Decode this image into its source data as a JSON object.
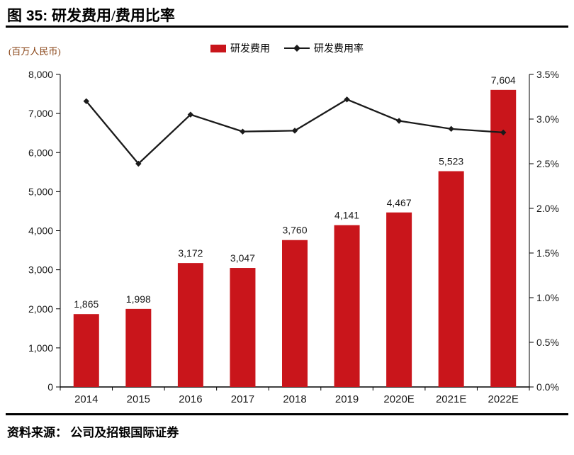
{
  "page": {
    "title_prefix": "图 35:",
    "title_main": "研发费用/费用比率",
    "unit_label": "(百万人民币)",
    "source_label": "资料来源：",
    "source_text": "公司及招银国际证券"
  },
  "colors": {
    "bar": "#C9151B",
    "line": "#1A1A1A",
    "axis": "#000000",
    "text": "#1A1A1A",
    "unit_text": "#843C0C"
  },
  "chart_data": {
    "type": "bar",
    "subtype": "bar+line combo, dual axis",
    "title": "图 35: 研发费用/费用比率",
    "categories": [
      "2014",
      "2015",
      "2016",
      "2017",
      "2018",
      "2019",
      "2020E",
      "2021E",
      "2022E"
    ],
    "series": [
      {
        "name": "研发费用",
        "type": "bar",
        "axis": "left",
        "values": [
          1865,
          1998,
          3172,
          3047,
          3760,
          4141,
          4467,
          5523,
          7604
        ]
      },
      {
        "name": "研发费用率",
        "type": "line",
        "axis": "right",
        "values": [
          3.2,
          2.5,
          3.05,
          2.86,
          2.87,
          3.22,
          2.98,
          2.89,
          2.85
        ]
      }
    ],
    "bar_labels": [
      "1,865",
      "1,998",
      "3,172",
      "3,047",
      "3,760",
      "4,141",
      "4,467",
      "5,523",
      "7,604"
    ],
    "left_axis": {
      "label": "(百万人民币)",
      "min": 0,
      "max": 8000,
      "step": 1000,
      "tick_labels": [
        "0",
        "1,000",
        "2,000",
        "3,000",
        "4,000",
        "5,000",
        "6,000",
        "7,000",
        "8,000"
      ]
    },
    "right_axis": {
      "min": 0,
      "max": 3.5,
      "step": 0.5,
      "tick_labels": [
        "0.0%",
        "0.5%",
        "1.0%",
        "1.5%",
        "2.0%",
        "2.5%",
        "3.0%",
        "3.5%"
      ]
    },
    "grid": "off",
    "legend_position": "top-center"
  }
}
